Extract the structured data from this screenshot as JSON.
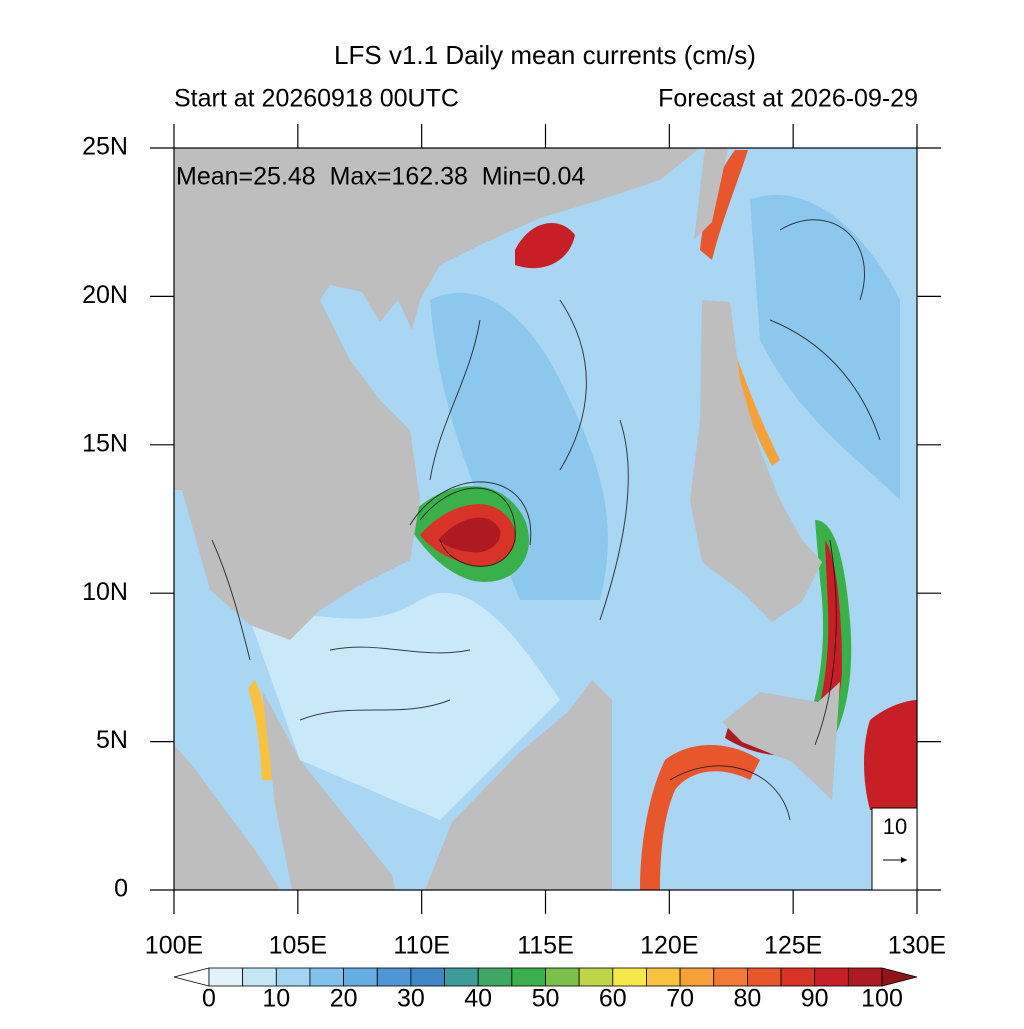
{
  "chart_data": {
    "type": "map",
    "title": "LFS v1.1 Daily mean currents (cm/s)",
    "subtitle_left": "Start at 20260918 00UTC",
    "subtitle_right": "Forecast at 2026-09-29",
    "annotation": "Mean=25.48  Max=162.38  Min=0.04",
    "xlim": [
      100,
      130
    ],
    "ylim": [
      0,
      25
    ],
    "xticks": [
      {
        "value": 100,
        "label": "100E"
      },
      {
        "value": 105,
        "label": "105E"
      },
      {
        "value": 110,
        "label": "110E"
      },
      {
        "value": 115,
        "label": "115E"
      },
      {
        "value": 120,
        "label": "120E"
      },
      {
        "value": 125,
        "label": "125E"
      },
      {
        "value": 130,
        "label": "130E"
      }
    ],
    "yticks": [
      0,
      {
        "value": 5,
        "label": "5N"
      },
      {
        "value": 10,
        "label": "10N"
      },
      {
        "value": 15,
        "label": "15N"
      },
      {
        "value": 20,
        "label": "20N"
      },
      {
        "value": 25,
        "label": "25N"
      }
    ],
    "reference_vector": 10,
    "colorbar": {
      "levels": [
        0,
        5,
        10,
        15,
        20,
        25,
        30,
        35,
        40,
        45,
        50,
        55,
        60,
        65,
        70,
        75,
        80,
        85,
        90,
        95,
        100
      ],
      "ticks": [
        0,
        10,
        20,
        30,
        40,
        50,
        60,
        70,
        80,
        90,
        100
      ],
      "colors": [
        "#ffffff",
        "#e0f3fb",
        "#c5e6f7",
        "#a3d5f2",
        "#80c2ec",
        "#64aee2",
        "#4f96d4",
        "#3f86c4",
        "#3d9c9a",
        "#3fa765",
        "#3ab04a",
        "#7cc04a",
        "#bfd448",
        "#f5e94a",
        "#f8c23e",
        "#f6a03a",
        "#f27a34",
        "#e8562c",
        "#d93327",
        "#c81f26",
        "#ae1a21",
        "#8f1518"
      ]
    }
  }
}
